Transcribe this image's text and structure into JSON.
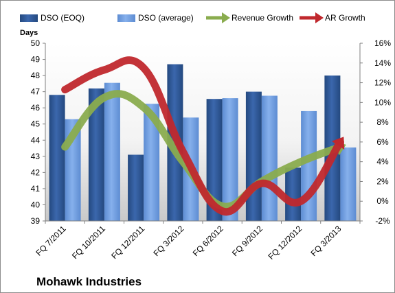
{
  "chart_data": {
    "type": "bar",
    "title": "Mohawk Industries",
    "ylabel": "Days",
    "categories": [
      "FQ 7/2011",
      "FQ 10/2011",
      "FQ 12/2011",
      "FQ 3/2012",
      "FQ 6/2012",
      "FQ 9/2012",
      "FQ 12/2012",
      "FQ 3/2013"
    ],
    "ylim": [
      39,
      50
    ],
    "y_ticks": [
      "39",
      "40",
      "41",
      "42",
      "43",
      "44",
      "45",
      "46",
      "47",
      "48",
      "49",
      "50"
    ],
    "y2lim": [
      -2,
      16
    ],
    "y2_ticks": [
      "-2%",
      "0%",
      "2%",
      "4%",
      "6%",
      "8%",
      "10%",
      "12%",
      "14%",
      "16%"
    ],
    "legend_position": "top",
    "grid": false,
    "series": [
      {
        "name": "DSO (EOQ)",
        "type": "bar",
        "axis": "left",
        "color": "#2e5aa0",
        "values": [
          46.8,
          47.2,
          43.1,
          48.7,
          46.55,
          47.0,
          42.3,
          48.0
        ]
      },
      {
        "name": "DSO (average)",
        "type": "bar",
        "axis": "left",
        "color": "#6d9de0",
        "values": [
          45.3,
          47.55,
          46.25,
          45.4,
          46.6,
          46.75,
          45.8,
          43.55
        ]
      },
      {
        "name": "Revenue Growth",
        "type": "line",
        "axis": "right",
        "color": "#8aac4e",
        "values": [
          5.5,
          10.5,
          9.5,
          4.0,
          -0.5,
          2.0,
          4.0,
          5.5
        ]
      },
      {
        "name": "AR Growth",
        "type": "line",
        "axis": "right",
        "color": "#c0282d",
        "values": [
          11.3,
          13.3,
          13.5,
          5.0,
          -1.0,
          1.8,
          0.0,
          6.0
        ]
      }
    ]
  }
}
